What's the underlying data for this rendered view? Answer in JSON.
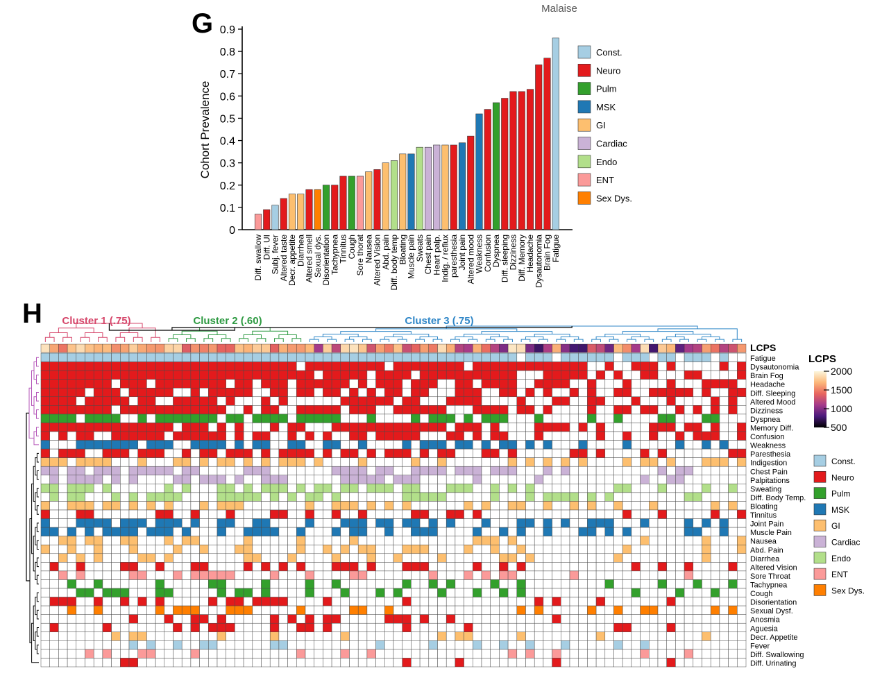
{
  "panel_g_label": "G",
  "panel_h_label": "H",
  "malaise_label": "Malaise",
  "colors": {
    "Const.": "#a6cee3",
    "Neuro": "#e31a1c",
    "Pulm": "#33a02c",
    "MSK": "#1f78b4",
    "GI": "#fdbf6f",
    "Cardiac": "#cab2d6",
    "Endo": "#b2df8a",
    "ENT": "#fb9a99",
    "Sex Dys.": "#ff7f00"
  },
  "chart_data": [
    {
      "type": "bar",
      "ylabel": "Cohort Prevalence",
      "ylim": [
        0,
        0.9
      ],
      "yticks": [
        0,
        0.1,
        0.2,
        0.3,
        0.4,
        0.5,
        0.6,
        0.7,
        0.8,
        0.9
      ],
      "categories": [
        "Diff. swallow",
        "Diff. UI",
        "Subj. fever",
        "Altered taste",
        "Decr. appetite",
        "Diarrhea",
        "Altered smell",
        "Sexual dys.",
        "Disorientation",
        "Tachypnea",
        "Tinnitus",
        "Cough",
        "Sore thorat",
        "Nausea",
        "Altered Vision",
        "Abd. pain",
        "Diff. body temp",
        "Bloating",
        "Muscle pain",
        "Sweats",
        "Chest pain",
        "Heart palp.",
        "Indig. / reflux",
        "paresthesia",
        "Joint pain",
        "Altered mood",
        "Weakness",
        "Confusion",
        "Dyspnea",
        "Diff. sleeping",
        "Dizziness",
        "Diff. Memory",
        "Headache",
        "Dysautonomia",
        "Brain Fog",
        "Fatigue"
      ],
      "values": [
        0.07,
        0.09,
        0.11,
        0.14,
        0.16,
        0.16,
        0.18,
        0.18,
        0.2,
        0.2,
        0.24,
        0.24,
        0.24,
        0.26,
        0.27,
        0.3,
        0.31,
        0.34,
        0.34,
        0.37,
        0.37,
        0.38,
        0.38,
        0.38,
        0.39,
        0.42,
        0.52,
        0.54,
        0.57,
        0.59,
        0.62,
        0.62,
        0.63,
        0.74,
        0.77,
        0.86
      ],
      "groups": [
        "ENT",
        "Neuro",
        "Const.",
        "Neuro",
        "GI",
        "GI",
        "Neuro",
        "Sex Dys.",
        "Pulm",
        "Neuro",
        "Neuro",
        "Pulm",
        "ENT",
        "GI",
        "Neuro",
        "GI",
        "Endo",
        "GI",
        "MSK",
        "Endo",
        "Cardiac",
        "Cardiac",
        "GI",
        "Neuro",
        "MSK",
        "Neuro",
        "MSK",
        "Neuro",
        "Pulm",
        "Neuro",
        "Neuro",
        "Neuro",
        "Neuro",
        "Neuro",
        "Neuro",
        "Const."
      ],
      "legend": [
        "Const.",
        "Neuro",
        "Pulm",
        "MSK",
        "GI",
        "Cardiac",
        "Endo",
        "ENT",
        "Sex Dys."
      ],
      "legend_position": "right"
    },
    {
      "type": "heatmap",
      "n_columns": 80,
      "top_annotation_label": "LCPS",
      "clusters": [
        {
          "label": "Cluster 1 (.75)",
          "color": "#d6476b"
        },
        {
          "label": "Cluster 2 (.60)",
          "color": "#2e9a42"
        },
        {
          "label": "Cluster 3 (.75)",
          "color": "#2f86c7"
        }
      ],
      "rows": [
        {
          "label": "Fatigue",
          "group": "Const.",
          "prevalence": 0.86
        },
        {
          "label": "Dysautonomia",
          "group": "Neuro",
          "prevalence": 0.74
        },
        {
          "label": "Brain Fog",
          "group": "Neuro",
          "prevalence": 0.77
        },
        {
          "label": "Headache",
          "group": "Neuro",
          "prevalence": 0.63
        },
        {
          "label": "Diff. Sleeping",
          "group": "Neuro",
          "prevalence": 0.59
        },
        {
          "label": "Altered Mood",
          "group": "Neuro",
          "prevalence": 0.42
        },
        {
          "label": "Dizziness",
          "group": "Neuro",
          "prevalence": 0.62
        },
        {
          "label": "Dyspnea",
          "group": "Pulm",
          "prevalence": 0.57
        },
        {
          "label": "Memory Diff.",
          "group": "Neuro",
          "prevalence": 0.62
        },
        {
          "label": "Confusion",
          "group": "Neuro",
          "prevalence": 0.54
        },
        {
          "label": "Weakness",
          "group": "MSK",
          "prevalence": 0.52
        },
        {
          "label": "Paresthesia",
          "group": "Neuro",
          "prevalence": 0.38
        },
        {
          "label": "Indigestion",
          "group": "GI",
          "prevalence": 0.38
        },
        {
          "label": "Chest Pain",
          "group": "Cardiac",
          "prevalence": 0.37
        },
        {
          "label": "Palpitations",
          "group": "Cardiac",
          "prevalence": 0.38
        },
        {
          "label": "Sweating",
          "group": "Endo",
          "prevalence": 0.37
        },
        {
          "label": "Diff. Body Temp.",
          "group": "Endo",
          "prevalence": 0.31
        },
        {
          "label": "Bloating",
          "group": "GI",
          "prevalence": 0.34
        },
        {
          "label": "Tinnitus",
          "group": "Neuro",
          "prevalence": 0.24
        },
        {
          "label": "Joint Pain",
          "group": "MSK",
          "prevalence": 0.39
        },
        {
          "label": "Muscle Pain",
          "group": "MSK",
          "prevalence": 0.34
        },
        {
          "label": "Nausea",
          "group": "GI",
          "prevalence": 0.26
        },
        {
          "label": "Abd. Pain",
          "group": "GI",
          "prevalence": 0.3
        },
        {
          "label": "Diarrhea",
          "group": "GI",
          "prevalence": 0.16
        },
        {
          "label": "Altered Vision",
          "group": "Neuro",
          "prevalence": 0.27
        },
        {
          "label": "Sore Throat",
          "group": "ENT",
          "prevalence": 0.24
        },
        {
          "label": "Tachypnea",
          "group": "Pulm",
          "prevalence": 0.2
        },
        {
          "label": "Cough",
          "group": "Pulm",
          "prevalence": 0.24
        },
        {
          "label": "Disorientation",
          "group": "Neuro",
          "prevalence": 0.2
        },
        {
          "label": "Sexual Dysf.",
          "group": "Sex Dys.",
          "prevalence": 0.18
        },
        {
          "label": "Anosmia",
          "group": "Neuro",
          "prevalence": 0.18
        },
        {
          "label": "Aguesia",
          "group": "Neuro",
          "prevalence": 0.14
        },
        {
          "label": "Decr. Appetite",
          "group": "GI",
          "prevalence": 0.16
        },
        {
          "label": "Fever",
          "group": "Const.",
          "prevalence": 0.11
        },
        {
          "label": "Diff. Swallowing",
          "group": "ENT",
          "prevalence": 0.07
        },
        {
          "label": "Diff. Urinating",
          "group": "Neuro",
          "prevalence": 0.09
        }
      ],
      "colorbar": {
        "title": "LCPS",
        "ticks": [
          2000,
          1500,
          1000,
          500
        ],
        "range": [
          500,
          2000
        ],
        "stops": [
          "#000000",
          "#4b1a7c",
          "#a43a8a",
          "#e8655e",
          "#fcb87a",
          "#fcf6dc"
        ]
      },
      "legend": [
        "Const.",
        "Neuro",
        "Pulm",
        "MSK",
        "GI",
        "Cardiac",
        "Endo",
        "ENT",
        "Sex Dys."
      ],
      "legend_position": "right"
    }
  ]
}
